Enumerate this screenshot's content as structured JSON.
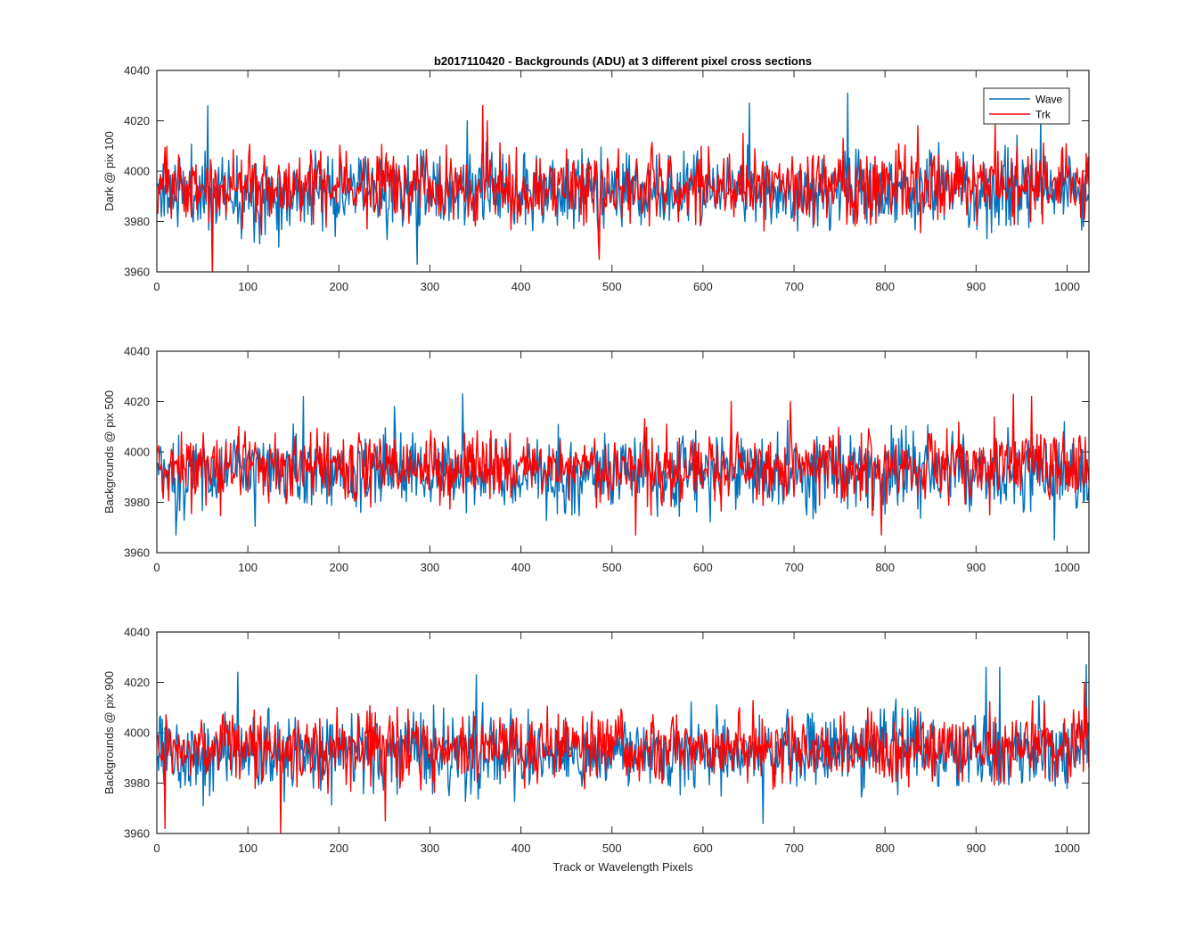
{
  "chart_data": {
    "type": "line",
    "title": "b2017110420 - Backgrounds (ADU) at 3 different pixel cross sections",
    "xlabel": "Track or Wavelength Pixels",
    "xlim": [
      0,
      1024
    ],
    "xticks": [
      0,
      100,
      200,
      300,
      400,
      500,
      600,
      700,
      800,
      900,
      1000
    ],
    "ylim": [
      3960,
      4040
    ],
    "yticks": [
      3960,
      3980,
      4000,
      4020,
      4040
    ],
    "grid": false,
    "legend_placement": "top-right",
    "colors": {
      "Wave": "#0072BD",
      "Trk": "#FF0000"
    },
    "panels": [
      {
        "ylabel": "Dark @ pix 100",
        "legend": true,
        "series": [
          {
            "name": "Wave",
            "color": "#0072BD",
            "seed": 11,
            "mean": 3992,
            "sd": 7.5,
            "n": 1024,
            "spikes": [
              [
                55,
                4026
              ],
              [
                340,
                4020
              ],
              [
                650,
                4027
              ],
              [
                758,
                4031
              ],
              [
                970,
                4021
              ],
              [
                285,
                3963
              ],
              [
                60,
                3960
              ]
            ]
          },
          {
            "name": "Trk",
            "color": "#FF0000",
            "seed": 23,
            "mean": 3994,
            "sd": 7.0,
            "n": 1024,
            "spikes": [
              [
                357,
                4026
              ],
              [
                362,
                4020
              ],
              [
                643,
                4015
              ],
              [
                920,
                4019
              ],
              [
                835,
                4018
              ],
              [
                60,
                3960
              ],
              [
                485,
                3965
              ]
            ]
          }
        ]
      },
      {
        "ylabel": "Backgrounds @ pix 500",
        "legend": false,
        "series": [
          {
            "name": "Wave",
            "color": "#0072BD",
            "seed": 37,
            "mean": 3992,
            "sd": 7.5,
            "n": 1024,
            "spikes": [
              [
                160,
                4022
              ],
              [
                335,
                4023
              ],
              [
                260,
                4018
              ],
              [
                20,
                3967
              ],
              [
                985,
                3965
              ]
            ]
          },
          {
            "name": "Trk",
            "color": "#FF0000",
            "seed": 41,
            "mean": 3994,
            "sd": 7.0,
            "n": 1024,
            "spikes": [
              [
                940,
                4023
              ],
              [
                960,
                4022
              ],
              [
                630,
                4020
              ],
              [
                695,
                4020
              ],
              [
                525,
                3967
              ],
              [
                795,
                3967
              ]
            ]
          }
        ]
      },
      {
        "ylabel": "Backgrounds @ pix 900",
        "legend": false,
        "series": [
          {
            "name": "Wave",
            "color": "#0072BD",
            "seed": 53,
            "mean": 3992,
            "sd": 7.5,
            "n": 1024,
            "spikes": [
              [
                88,
                4024
              ],
              [
                350,
                4023
              ],
              [
                1020,
                4027
              ],
              [
                910,
                4026
              ],
              [
                925,
                4026
              ],
              [
                665,
                3964
              ]
            ]
          },
          {
            "name": "Trk",
            "color": "#FF0000",
            "seed": 67,
            "mean": 3994,
            "sd": 7.0,
            "n": 1024,
            "spikes": [
              [
                250,
                4018
              ],
              [
                1018,
                4020
              ],
              [
                135,
                3960
              ],
              [
                8,
                3962
              ],
              [
                250,
                3965
              ]
            ]
          }
        ]
      }
    ]
  }
}
